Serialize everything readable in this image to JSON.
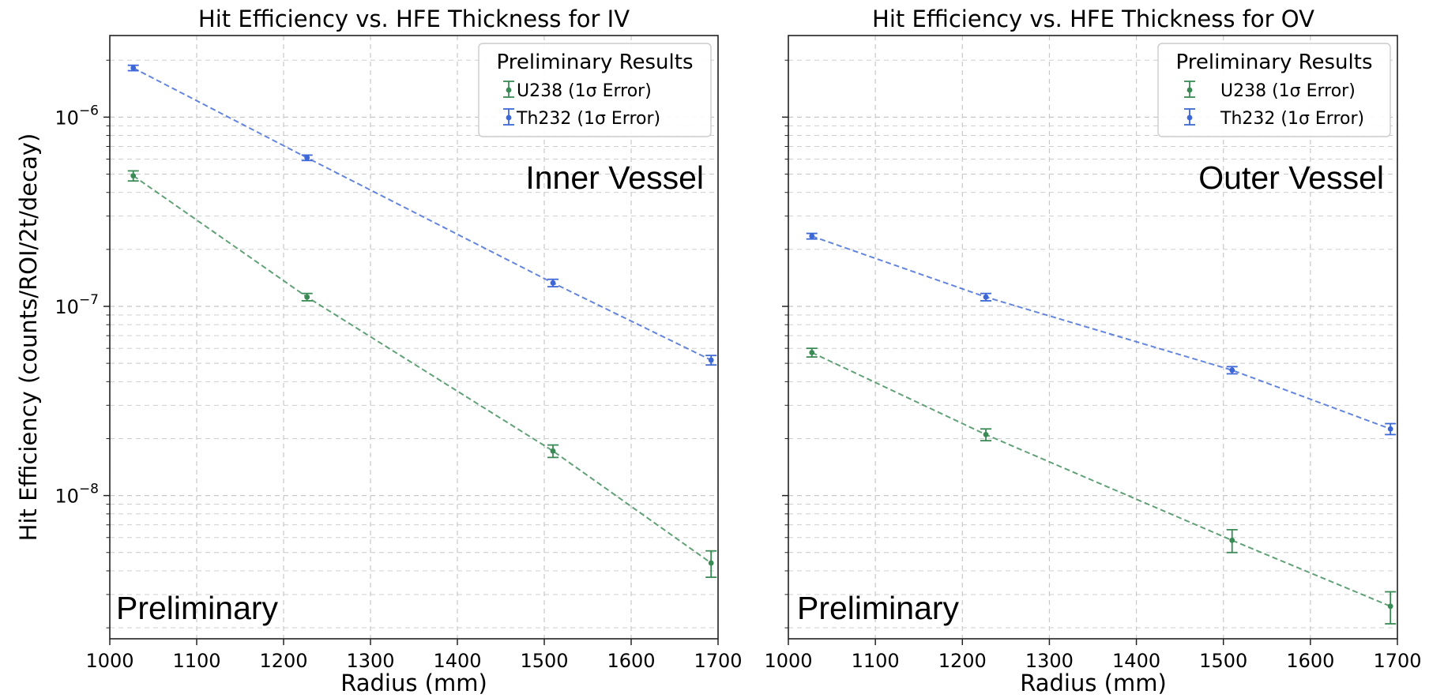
{
  "ylabel": "Hit Efficiency (counts/ROI/2t/decay)",
  "colors": {
    "u238": "#3a8a55",
    "th232": "#3d67d6",
    "grid": "#c8c8c8"
  },
  "chart_data": [
    {
      "type": "scatter",
      "title": "Hit Efficiency vs. HFE Thickness for IV",
      "xlabel": "Radius (mm)",
      "ylabel": "Hit Efficiency (counts/ROI/2t/decay)",
      "yscale": "log",
      "xlim": [
        1000,
        1700
      ],
      "ylim": [
        1.75e-09,
        2.7e-06
      ],
      "xticks": [
        "1000",
        "1100",
        "1200",
        "1300",
        "1400",
        "1500",
        "1600",
        "1700"
      ],
      "yticks": [
        "10−8",
        "10−7",
        "10−6"
      ],
      "grid": true,
      "legend_title": "Preliminary Results",
      "legend_position": "top-right",
      "annotation": "Inner Vessel",
      "watermark": "Preliminary",
      "series": [
        {
          "name": "U238 (1σ Error)",
          "color": "#3a8a55",
          "x": [
            1027,
            1227,
            1510,
            1692
          ],
          "y": [
            4.9e-07,
            1.12e-07,
            1.72e-08,
            4.4e-09
          ],
          "err": [
            3e-08,
            5e-09,
            1.3e-09,
            7e-10
          ]
        },
        {
          "name": "Th232 (1σ Error)",
          "color": "#3d67d6",
          "x": [
            1027,
            1227,
            1510,
            1692
          ],
          "y": [
            1.82e-06,
            6.1e-07,
            1.33e-07,
            5.2e-08
          ],
          "err": [
            6e-08,
            2e-08,
            6e-09,
            3e-09
          ]
        }
      ]
    },
    {
      "type": "scatter",
      "title": "Hit Efficiency vs. HFE Thickness for OV",
      "xlabel": "Radius (mm)",
      "yscale": "log",
      "xlim": [
        1000,
        1700
      ],
      "ylim": [
        1.75e-09,
        2.7e-06
      ],
      "xticks": [
        "1000",
        "1100",
        "1200",
        "1300",
        "1400",
        "1500",
        "1600",
        "1700"
      ],
      "grid": true,
      "legend_title": "Preliminary Results",
      "legend_position": "top-right",
      "annotation": "Outer Vessel",
      "watermark": "Preliminary",
      "series": [
        {
          "name": "U238 (1σ Error)",
          "color": "#3a8a55",
          "x": [
            1027,
            1227,
            1510,
            1692
          ],
          "y": [
            5.7e-08,
            2.1e-08,
            5.8e-09,
            2.6e-09
          ],
          "err": [
            3e-09,
            1.5e-09,
            8e-10,
            5e-10
          ]
        },
        {
          "name": "Th232 (1σ Error)",
          "color": "#3d67d6",
          "x": [
            1027,
            1227,
            1510,
            1692
          ],
          "y": [
            2.35e-07,
            1.12e-07,
            4.6e-08,
            2.25e-08
          ],
          "err": [
            8e-09,
            5e-09,
            2e-09,
            1.5e-09
          ]
        }
      ]
    }
  ]
}
